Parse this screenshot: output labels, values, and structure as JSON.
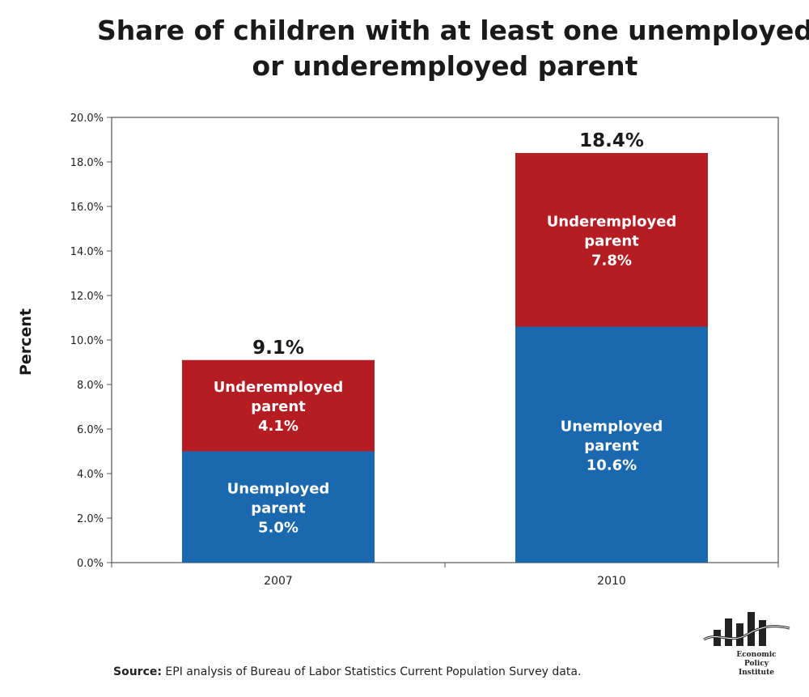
{
  "chart_data": {
    "type": "bar",
    "stacked": true,
    "title_lines": [
      "Share of children with at least one unemployed",
      "or underemployed parent"
    ],
    "xlabel": "",
    "ylabel": "Percent",
    "ylim": [
      0,
      20
    ],
    "yticks": [
      "0.0%",
      "2.0%",
      "4.0%",
      "6.0%",
      "8.0%",
      "10.0%",
      "12.0%",
      "14.0%",
      "16.0%",
      "18.0%",
      "20.0%"
    ],
    "categories": [
      "2007",
      "2010"
    ],
    "series": [
      {
        "name_lines": [
          "Unemployed",
          "parent"
        ],
        "values": [
          5.0,
          10.6
        ],
        "value_labels": [
          "5.0%",
          "10.6%"
        ],
        "color": "#1a68ad"
      },
      {
        "name_lines": [
          "Underemployed",
          "parent"
        ],
        "values": [
          4.1,
          7.8
        ],
        "value_labels": [
          "4.1%",
          "7.8%"
        ],
        "color": "#b51d23"
      }
    ],
    "total_labels": [
      "9.1%",
      "18.4%"
    ],
    "grid": false,
    "source": {
      "prefix": "Source:",
      "text": " EPI analysis of Bureau of Labor Statistics Current Population Survey data."
    },
    "logo": {
      "lines": [
        "Economic",
        "Policy",
        "Institute"
      ],
      "icon": "bar-chart-logo-icon"
    }
  }
}
